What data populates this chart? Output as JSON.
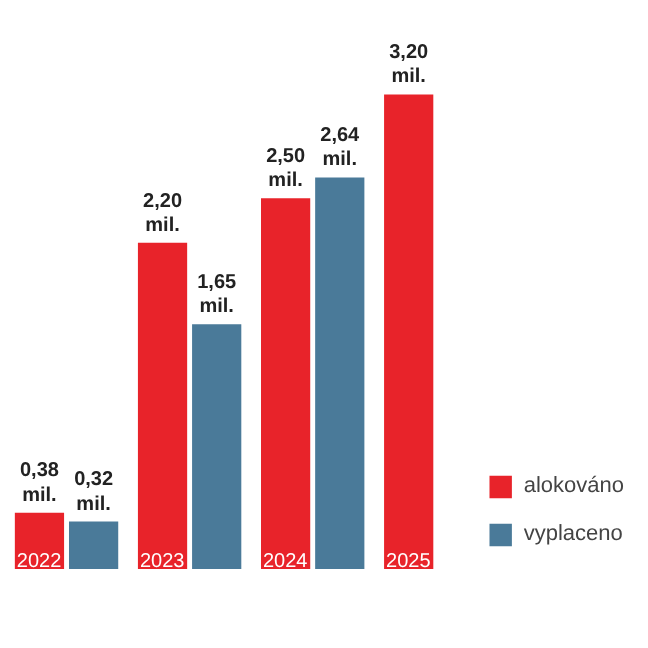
{
  "chart_data": {
    "type": "bar",
    "categories": [
      "2022",
      "2023",
      "2024",
      "2025"
    ],
    "series": [
      {
        "name": "alokováno",
        "color": "#e8232a",
        "values": [
          0.38,
          2.2,
          2.5,
          3.2
        ],
        "value_labels": [
          "0,38 mil.",
          "2,20 mil.",
          "2,50 mil.",
          "3,20 mil."
        ]
      },
      {
        "name": "vyplaceno",
        "color": "#4a7a99",
        "values": [
          0.32,
          1.65,
          2.64,
          null
        ],
        "value_labels": [
          "0,32 mil.",
          "1,65 mil.",
          "2,64 mil.",
          null
        ]
      }
    ],
    "legend": "bottom right"
  }
}
